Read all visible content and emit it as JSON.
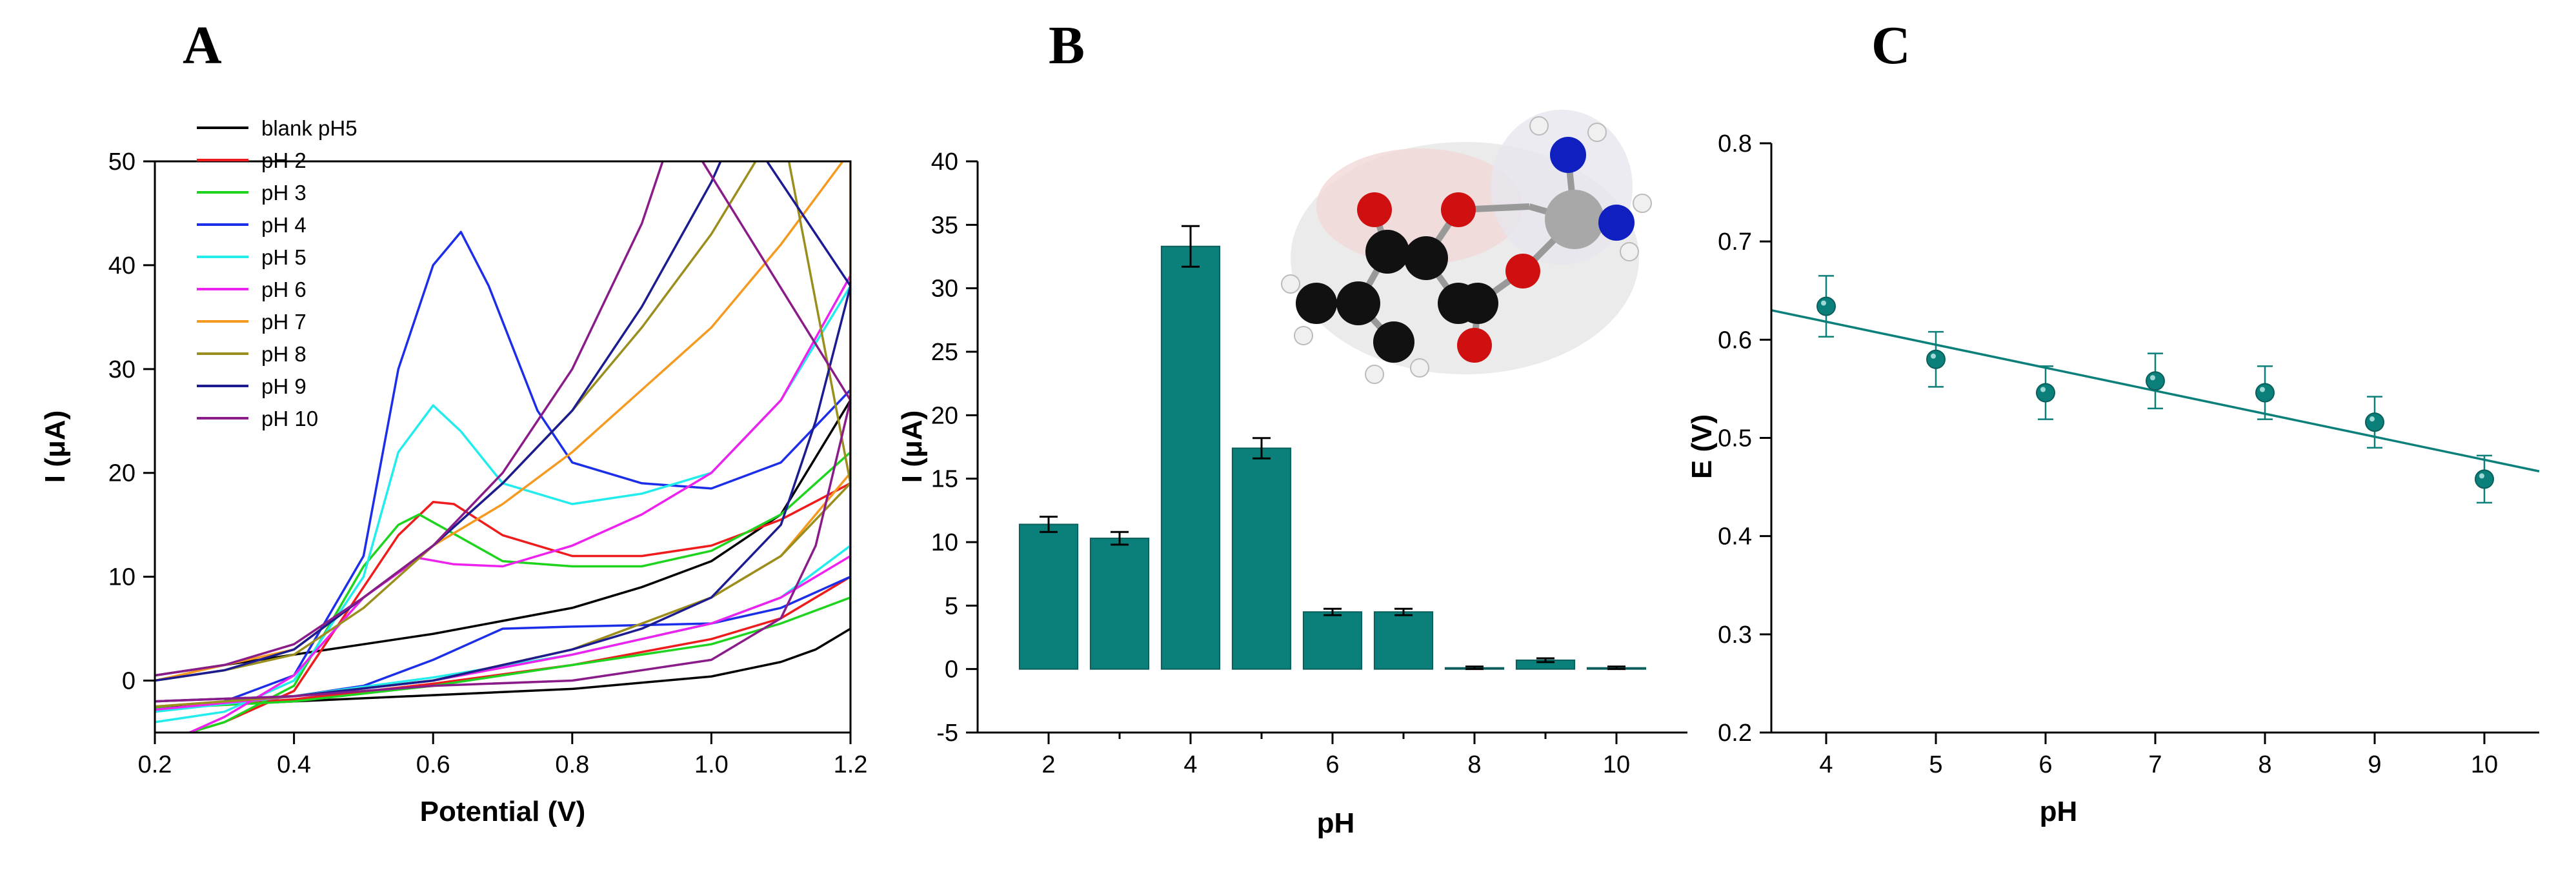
{
  "panels": {
    "A": {
      "letter": "A"
    },
    "B": {
      "letter": "B"
    },
    "C": {
      "letter": "C"
    }
  },
  "colors": {
    "teal": "#0b7f7a",
    "tealEdge": "#0a5f5c"
  },
  "chart_data": [
    {
      "id": "A",
      "type": "line",
      "xlabel": "Potential (V)",
      "ylabel": "I (μA)",
      "xlim": [
        0.2,
        1.2
      ],
      "ylim": [
        -5,
        50
      ],
      "xticks": [
        0.2,
        0.4,
        0.6,
        0.8,
        1.0,
        1.2
      ],
      "yticks": [
        0,
        10,
        20,
        30,
        40,
        50
      ],
      "xtick_labels": [
        "0.2",
        "0.4",
        "0.6",
        "0.8",
        "1.0",
        "1.2"
      ],
      "ytick_labels": [
        "0",
        "10",
        "20",
        "30",
        "40",
        "50"
      ],
      "legend_position": "top-left",
      "series": [
        {
          "name": "blank pH5",
          "color": "#000000",
          "forward": [
            [
              0.2,
              0.5
            ],
            [
              0.4,
              2.5
            ],
            [
              0.6,
              4.5
            ],
            [
              0.8,
              7
            ],
            [
              0.9,
              9
            ],
            [
              1.0,
              11.5
            ],
            [
              1.1,
              16
            ],
            [
              1.2,
              27
            ]
          ],
          "backward": [
            [
              1.2,
              5
            ],
            [
              1.15,
              3
            ],
            [
              1.1,
              1.8
            ],
            [
              1.0,
              0.4
            ],
            [
              0.8,
              -0.8
            ],
            [
              0.6,
              -1.4
            ],
            [
              0.4,
              -2
            ],
            [
              0.2,
              -2.6
            ]
          ]
        },
        {
          "name": "pH 2",
          "color": "#ee1c1c",
          "forward": [
            [
              0.25,
              -5
            ],
            [
              0.3,
              -4
            ],
            [
              0.4,
              -1
            ],
            [
              0.5,
              9
            ],
            [
              0.55,
              14
            ],
            [
              0.6,
              17.2
            ],
            [
              0.63,
              17
            ],
            [
              0.7,
              14
            ],
            [
              0.8,
              12
            ],
            [
              0.9,
              12
            ],
            [
              1.0,
              13
            ],
            [
              1.1,
              15.5
            ],
            [
              1.2,
              19
            ]
          ],
          "backward": [
            [
              1.2,
              10
            ],
            [
              1.1,
              6
            ],
            [
              1.0,
              4
            ],
            [
              0.8,
              1.5
            ],
            [
              0.6,
              -0.3
            ],
            [
              0.4,
              -1.8
            ],
            [
              0.2,
              -2.8
            ]
          ]
        },
        {
          "name": "pH 3",
          "color": "#1ed41e",
          "forward": [
            [
              0.25,
              -5
            ],
            [
              0.3,
              -4
            ],
            [
              0.4,
              -0.5
            ],
            [
              0.5,
              11
            ],
            [
              0.55,
              15
            ],
            [
              0.58,
              16
            ],
            [
              0.62,
              14.5
            ],
            [
              0.7,
              11.5
            ],
            [
              0.8,
              11
            ],
            [
              0.9,
              11
            ],
            [
              1.0,
              12.5
            ],
            [
              1.1,
              16
            ],
            [
              1.2,
              22
            ]
          ],
          "backward": [
            [
              1.2,
              8
            ],
            [
              1.1,
              5.5
            ],
            [
              1.0,
              3.5
            ],
            [
              0.8,
              1.5
            ],
            [
              0.6,
              -0.5
            ],
            [
              0.4,
              -2
            ],
            [
              0.2,
              -2.7
            ]
          ]
        },
        {
          "name": "pH 4",
          "color": "#1c2ee8",
          "forward": [
            [
              0.2,
              -3
            ],
            [
              0.3,
              -2
            ],
            [
              0.4,
              0.5
            ],
            [
              0.5,
              12
            ],
            [
              0.55,
              30
            ],
            [
              0.6,
              40
            ],
            [
              0.64,
              43.2
            ],
            [
              0.68,
              38
            ],
            [
              0.75,
              26
            ],
            [
              0.8,
              21
            ],
            [
              0.9,
              19
            ],
            [
              1.0,
              18.5
            ],
            [
              1.1,
              21
            ],
            [
              1.2,
              28
            ]
          ],
          "backward": [
            [
              1.2,
              10
            ],
            [
              1.1,
              7
            ],
            [
              1.0,
              5.5
            ],
            [
              0.8,
              5.2
            ],
            [
              0.7,
              5
            ],
            [
              0.6,
              2
            ],
            [
              0.5,
              -0.5
            ],
            [
              0.4,
              -1.5
            ],
            [
              0.2,
              -2.8
            ]
          ]
        },
        {
          "name": "pH 5",
          "color": "#22ecec",
          "forward": [
            [
              0.2,
              -4
            ],
            [
              0.3,
              -3
            ],
            [
              0.4,
              0
            ],
            [
              0.5,
              10
            ],
            [
              0.55,
              22
            ],
            [
              0.6,
              26.5
            ],
            [
              0.64,
              24
            ],
            [
              0.7,
              19
            ],
            [
              0.8,
              17
            ],
            [
              0.9,
              18
            ],
            [
              1.0,
              20
            ],
            [
              1.1,
              27
            ],
            [
              1.2,
              38
            ]
          ],
          "backward": [
            [
              1.2,
              13
            ],
            [
              1.1,
              8
            ],
            [
              1.0,
              5.5
            ],
            [
              0.8,
              2.5
            ],
            [
              0.6,
              0.3
            ],
            [
              0.4,
              -1.5
            ],
            [
              0.2,
              -3
            ]
          ]
        },
        {
          "name": "pH 6",
          "color": "#ee22ee",
          "forward": [
            [
              0.25,
              -5
            ],
            [
              0.3,
              -3.5
            ],
            [
              0.4,
              0.5
            ],
            [
              0.5,
              8
            ],
            [
              0.58,
              11.8
            ],
            [
              0.63,
              11.2
            ],
            [
              0.7,
              11
            ],
            [
              0.8,
              13
            ],
            [
              0.9,
              16
            ],
            [
              1.0,
              20
            ],
            [
              1.1,
              27
            ],
            [
              1.2,
              39
            ]
          ],
          "backward": [
            [
              1.2,
              12
            ],
            [
              1.1,
              8
            ],
            [
              1.0,
              5.5
            ],
            [
              0.8,
              2.5
            ],
            [
              0.6,
              0
            ],
            [
              0.4,
              -1.5
            ],
            [
              0.2,
              -2.8
            ]
          ]
        },
        {
          "name": "pH 7",
          "color": "#f59a20",
          "forward": [
            [
              0.2,
              0
            ],
            [
              0.3,
              1.5
            ],
            [
              0.4,
              3
            ],
            [
              0.5,
              8
            ],
            [
              0.6,
              13
            ],
            [
              0.7,
              17
            ],
            [
              0.8,
              22
            ],
            [
              0.9,
              28
            ],
            [
              1.0,
              34
            ],
            [
              1.1,
              42
            ],
            [
              1.2,
              51
            ]
          ],
          "backward": [
            [
              1.2,
              20
            ],
            [
              1.1,
              12
            ],
            [
              1.0,
              8
            ],
            [
              0.8,
              3
            ],
            [
              0.6,
              0
            ],
            [
              0.4,
              -1.5
            ],
            [
              0.2,
              -2.5
            ]
          ]
        },
        {
          "name": "pH 8",
          "color": "#9a8f1e",
          "forward": [
            [
              0.2,
              0
            ],
            [
              0.3,
              1
            ],
            [
              0.4,
              2.5
            ],
            [
              0.5,
              7
            ],
            [
              0.6,
              13
            ],
            [
              0.7,
              19
            ],
            [
              0.8,
              26
            ],
            [
              0.9,
              34
            ],
            [
              1.0,
              43
            ],
            [
              1.1,
              54
            ]
          ],
          "backward": [
            [
              1.2,
              19
            ],
            [
              1.1,
              12
            ],
            [
              1.0,
              8
            ],
            [
              0.8,
              3
            ],
            [
              0.6,
              0
            ],
            [
              0.4,
              -1.5
            ],
            [
              0.2,
              -2.5
            ]
          ]
        },
        {
          "name": "pH 9",
          "color": "#1c1c90",
          "forward": [
            [
              0.2,
              0
            ],
            [
              0.3,
              1
            ],
            [
              0.4,
              3
            ],
            [
              0.5,
              8
            ],
            [
              0.6,
              13
            ],
            [
              0.7,
              19
            ],
            [
              0.8,
              26
            ],
            [
              0.9,
              36
            ],
            [
              1.0,
              48
            ],
            [
              1.04,
              54
            ]
          ],
          "backward": [
            [
              1.2,
              38
            ],
            [
              1.15,
              25
            ],
            [
              1.1,
              15
            ],
            [
              1.0,
              8
            ],
            [
              0.9,
              5
            ],
            [
              0.8,
              3
            ],
            [
              0.6,
              0
            ],
            [
              0.4,
              -1.5
            ],
            [
              0.2,
              -2
            ]
          ]
        },
        {
          "name": "pH 10",
          "color": "#8a1c8a",
          "forward": [
            [
              0.2,
              0.5
            ],
            [
              0.3,
              1.5
            ],
            [
              0.4,
              3.5
            ],
            [
              0.5,
              8
            ],
            [
              0.6,
              13
            ],
            [
              0.7,
              20
            ],
            [
              0.8,
              30
            ],
            [
              0.9,
              44
            ],
            [
              0.95,
              54
            ]
          ],
          "backward": [
            [
              1.2,
              27
            ],
            [
              1.15,
              13
            ],
            [
              1.1,
              6
            ],
            [
              1.0,
              2
            ],
            [
              0.8,
              0
            ],
            [
              0.6,
              -0.5
            ],
            [
              0.4,
              -1.5
            ],
            [
              0.2,
              -2
            ]
          ]
        }
      ]
    },
    {
      "id": "B",
      "type": "bar",
      "xlabel": "pH",
      "ylabel": "I (μA)",
      "ylim": [
        -5,
        40
      ],
      "categories": [
        "2",
        "3",
        "4",
        "5",
        "6",
        "7",
        "8",
        "9",
        "10"
      ],
      "values": [
        11.4,
        10.3,
        33.3,
        17.4,
        4.5,
        4.5,
        0.1,
        0.7,
        0.1
      ],
      "errors": [
        0.6,
        0.5,
        1.6,
        0.8,
        0.25,
        0.25,
        0.1,
        0.15,
        0.1
      ],
      "yticks": [
        -5,
        0,
        5,
        10,
        15,
        20,
        25,
        30,
        35,
        40
      ],
      "ytick_labels": [
        "-5",
        "0",
        "5",
        "10",
        "15",
        "20",
        "25",
        "30",
        "35",
        "40"
      ],
      "xtick_labels": [
        "2",
        "4",
        "6",
        "8",
        "10"
      ],
      "xtick_values": [
        2,
        4,
        6,
        8,
        10
      ],
      "bar_color": "#0b7f7a"
    },
    {
      "id": "C",
      "type": "scatter",
      "xlabel": "pH",
      "ylabel": "E (V)",
      "xlim": [
        3.5,
        10.5
      ],
      "ylim": [
        0.2,
        0.8
      ],
      "xticks": [
        4,
        5,
        6,
        7,
        8,
        9,
        10
      ],
      "xtick_labels": [
        "4",
        "5",
        "6",
        "7",
        "8",
        "9",
        "10"
      ],
      "yticks": [
        0.2,
        0.3,
        0.4,
        0.5,
        0.6,
        0.7,
        0.8
      ],
      "ytick_labels": [
        "0.2",
        "0.3",
        "0.4",
        "0.5",
        "0.6",
        "0.7",
        "0.8"
      ],
      "points": [
        {
          "x": 4,
          "y": 0.634,
          "err": 0.031
        },
        {
          "x": 5,
          "y": 0.58,
          "err": 0.028
        },
        {
          "x": 6,
          "y": 0.546,
          "err": 0.027
        },
        {
          "x": 7,
          "y": 0.558,
          "err": 0.028
        },
        {
          "x": 8,
          "y": 0.546,
          "err": 0.027
        },
        {
          "x": 9,
          "y": 0.516,
          "err": 0.026
        },
        {
          "x": 10,
          "y": 0.458,
          "err": 0.024
        }
      ],
      "fit": {
        "x": [
          3.5,
          10.5
        ],
        "y": [
          0.63,
          0.466
        ]
      },
      "marker_color": "#0b7f7a"
    }
  ]
}
